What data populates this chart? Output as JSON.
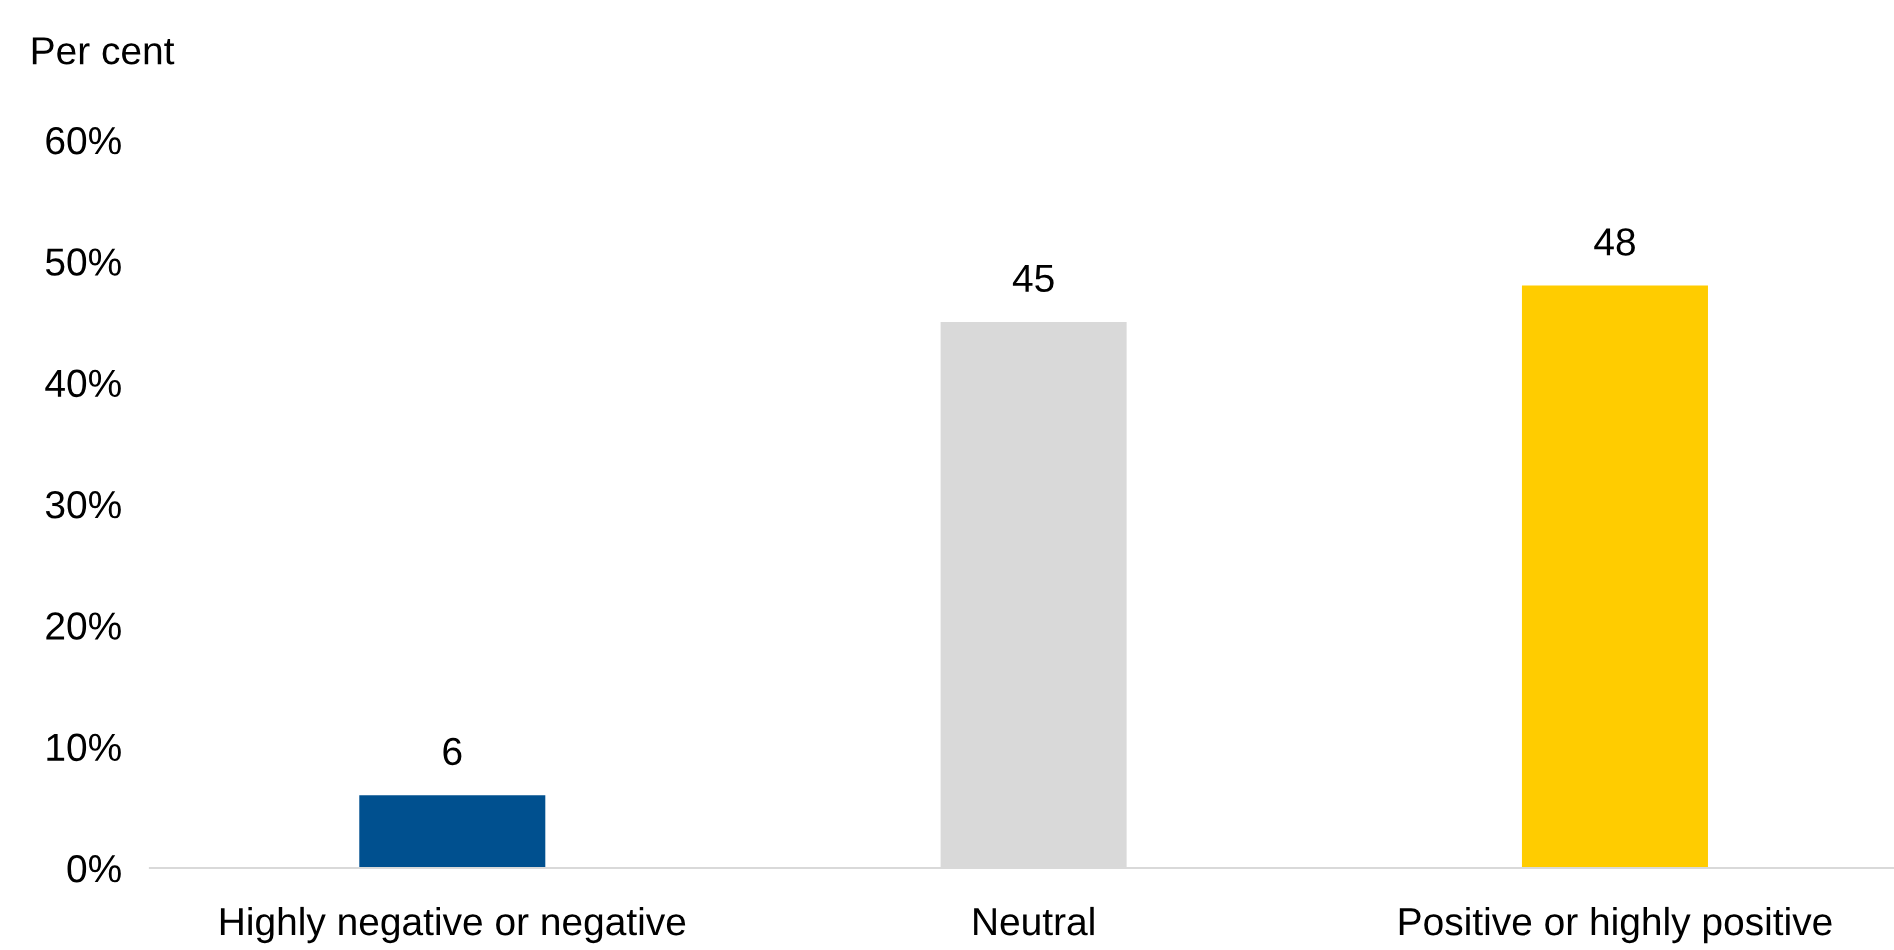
{
  "chart_data": {
    "type": "bar",
    "ylabel": "Per cent",
    "categories": [
      "Highly negative or negative",
      "Neutral",
      "Positive or highly positive"
    ],
    "values": [
      6,
      45,
      48
    ],
    "colors": [
      "#00508f",
      "#d9d9d9",
      "#ffcc00"
    ],
    "ylim": [
      0,
      60
    ],
    "yticks": [
      {
        "value": 0,
        "label": "0%"
      },
      {
        "value": 10,
        "label": "10%"
      },
      {
        "value": 20,
        "label": "20%"
      },
      {
        "value": 30,
        "label": "30%"
      },
      {
        "value": 40,
        "label": "40%"
      },
      {
        "value": 50,
        "label": "50%"
      },
      {
        "value": 60,
        "label": "60%"
      }
    ],
    "data_labels": true,
    "grid": false,
    "legend": false
  }
}
